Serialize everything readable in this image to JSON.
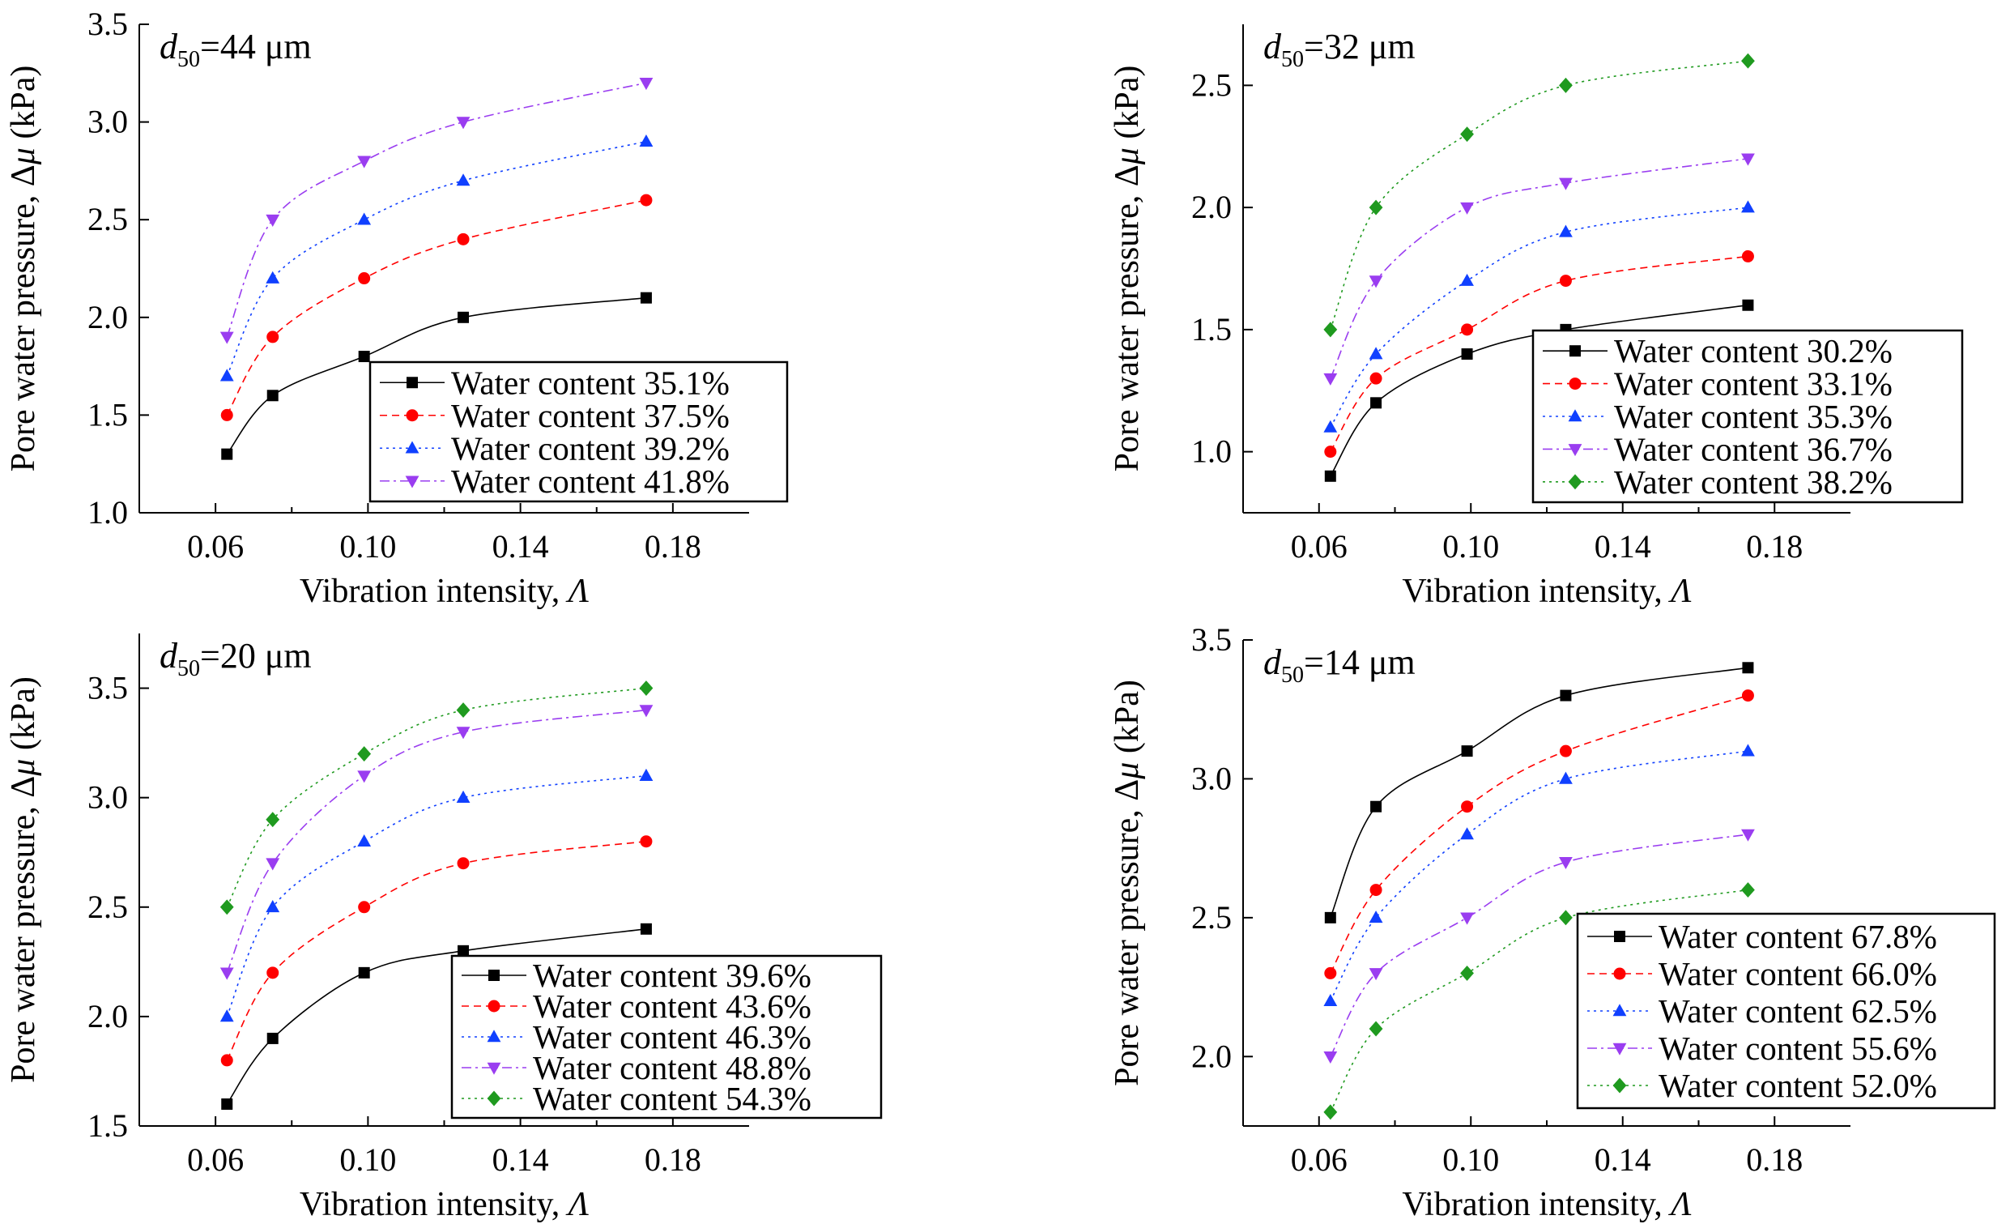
{
  "colors": {
    "black": "#000000",
    "red": "#ff0000",
    "blue": "#1040ff",
    "purple": "#9a3df0",
    "green": "#1f9a1f"
  },
  "chart_data": [
    {
      "type": "line",
      "panel_label_main": "d",
      "panel_label_sub": "50",
      "panel_label_rest": "=44 μm",
      "xlabel_main": "Vibration intensity, ",
      "xlabel_symbol": "Λ",
      "ylabel_main": "Pore water pressure, Δ",
      "ylabel_symbol": "μ",
      "ylabel_rest": " (kPa)",
      "xlim": [
        0.04,
        0.2
      ],
      "ylim": [
        1.0,
        3.5
      ],
      "xticks": [
        "0.06",
        "0.10",
        "0.14",
        "0.18"
      ],
      "yticks": [
        "1.0",
        "1.5",
        "2.0",
        "2.5",
        "3.0",
        "3.5"
      ],
      "x": [
        0.063,
        0.075,
        0.099,
        0.125,
        0.173
      ],
      "legend_position": "bottom-right",
      "series": [
        {
          "name": "Water content 35.1%",
          "values": [
            1.3,
            1.6,
            1.8,
            2.0,
            2.1
          ],
          "color": "#000000",
          "marker": "square",
          "line": "solid"
        },
        {
          "name": "Water content 37.5%",
          "values": [
            1.5,
            1.9,
            2.2,
            2.4,
            2.6
          ],
          "color": "#ff0000",
          "marker": "circle",
          "line": "dashed"
        },
        {
          "name": "Water content 39.2%",
          "values": [
            1.7,
            2.2,
            2.5,
            2.7,
            2.9
          ],
          "color": "#1040ff",
          "marker": "triangle-up",
          "line": "dotted"
        },
        {
          "name": "Water content 41.8%",
          "values": [
            1.9,
            2.5,
            2.8,
            3.0,
            3.2
          ],
          "color": "#9a3df0",
          "marker": "triangle-down",
          "line": "dashdot"
        }
      ]
    },
    {
      "type": "line",
      "panel_label_main": "d",
      "panel_label_sub": "50",
      "panel_label_rest": "=32 μm",
      "xlabel_main": "Vibration intensity, ",
      "xlabel_symbol": "Λ",
      "ylabel_main": "Pore water pressure, Δ",
      "ylabel_symbol": "μ",
      "ylabel_rest": " (kPa)",
      "xlim": [
        0.04,
        0.2
      ],
      "ylim": [
        0.75,
        2.75
      ],
      "xticks": [
        "0.06",
        "0.10",
        "0.14",
        "0.18"
      ],
      "yticks": [
        "1.0",
        "1.5",
        "2.0",
        "2.5"
      ],
      "x": [
        0.063,
        0.075,
        0.099,
        0.125,
        0.173
      ],
      "legend_position": "bottom-right",
      "series": [
        {
          "name": "Water content 30.2%",
          "values": [
            0.9,
            1.2,
            1.4,
            1.5,
            1.6
          ],
          "color": "#000000",
          "marker": "square",
          "line": "solid"
        },
        {
          "name": "Water content 33.1%",
          "values": [
            1.0,
            1.3,
            1.5,
            1.7,
            1.8
          ],
          "color": "#ff0000",
          "marker": "circle",
          "line": "dashed"
        },
        {
          "name": "Water content 35.3%",
          "values": [
            1.1,
            1.4,
            1.7,
            1.9,
            2.0
          ],
          "color": "#1040ff",
          "marker": "triangle-up",
          "line": "dotted"
        },
        {
          "name": "Water content 36.7%",
          "values": [
            1.3,
            1.7,
            2.0,
            2.1,
            2.2
          ],
          "color": "#9a3df0",
          "marker": "triangle-down",
          "line": "dashdot"
        },
        {
          "name": "Water content 38.2%",
          "values": [
            1.5,
            2.0,
            2.3,
            2.5,
            2.6
          ],
          "color": "#1f9a1f",
          "marker": "diamond",
          "line": "dotted"
        }
      ]
    },
    {
      "type": "line",
      "panel_label_main": "d",
      "panel_label_sub": "50",
      "panel_label_rest": "=20 μm",
      "xlabel_main": "Vibration intensity, ",
      "xlabel_symbol": "Λ",
      "ylabel_main": "Pore water pressure, Δ",
      "ylabel_symbol": "μ",
      "ylabel_rest": " (kPa)",
      "xlim": [
        0.04,
        0.2
      ],
      "ylim": [
        1.5,
        3.75
      ],
      "xticks": [
        "0.06",
        "0.10",
        "0.14",
        "0.18"
      ],
      "yticks": [
        "1.5",
        "2.0",
        "2.5",
        "3.0",
        "3.5"
      ],
      "x": [
        0.063,
        0.075,
        0.099,
        0.125,
        0.173
      ],
      "legend_position": "bottom-right",
      "series": [
        {
          "name": "Water content 39.6%",
          "values": [
            1.6,
            1.9,
            2.2,
            2.3,
            2.4
          ],
          "color": "#000000",
          "marker": "square",
          "line": "solid"
        },
        {
          "name": "Water content 43.6%",
          "values": [
            1.8,
            2.2,
            2.5,
            2.7,
            2.8
          ],
          "color": "#ff0000",
          "marker": "circle",
          "line": "dashed"
        },
        {
          "name": "Water content 46.3%",
          "values": [
            2.0,
            2.5,
            2.8,
            3.0,
            3.1
          ],
          "color": "#1040ff",
          "marker": "triangle-up",
          "line": "dotted"
        },
        {
          "name": "Water content 48.8%",
          "values": [
            2.2,
            2.7,
            3.1,
            3.3,
            3.4
          ],
          "color": "#9a3df0",
          "marker": "triangle-down",
          "line": "dashdot"
        },
        {
          "name": "Water content 54.3%",
          "values": [
            2.5,
            2.9,
            3.2,
            3.4,
            3.5
          ],
          "color": "#1f9a1f",
          "marker": "diamond",
          "line": "dotted"
        }
      ]
    },
    {
      "type": "line",
      "panel_label_main": "d",
      "panel_label_sub": "50",
      "panel_label_rest": "=14 μm",
      "xlabel_main": "Vibration intensity, ",
      "xlabel_symbol": "Λ",
      "ylabel_main": "Pore water pressure, Δ",
      "ylabel_symbol": "μ",
      "ylabel_rest": " (kPa)",
      "xlim": [
        0.04,
        0.2
      ],
      "ylim": [
        1.75,
        3.5
      ],
      "xticks": [
        "0.06",
        "0.10",
        "0.14",
        "0.18"
      ],
      "yticks": [
        "2.0",
        "2.5",
        "3.0",
        "3.5"
      ],
      "x": [
        0.063,
        0.075,
        0.099,
        0.125,
        0.173
      ],
      "legend_position": "bottom-right",
      "series": [
        {
          "name": "Water content 67.8%",
          "values": [
            2.5,
            2.9,
            3.1,
            3.3,
            3.4
          ],
          "color": "#000000",
          "marker": "square",
          "line": "solid"
        },
        {
          "name": "Water content 66.0%",
          "values": [
            2.3,
            2.6,
            2.9,
            3.1,
            3.3
          ],
          "color": "#ff0000",
          "marker": "circle",
          "line": "dashed"
        },
        {
          "name": "Water content 62.5%",
          "values": [
            2.2,
            2.5,
            2.8,
            3.0,
            3.1
          ],
          "color": "#1040ff",
          "marker": "triangle-up",
          "line": "dotted"
        },
        {
          "name": "Water content 55.6%",
          "values": [
            2.0,
            2.3,
            2.5,
            2.7,
            2.8
          ],
          "color": "#9a3df0",
          "marker": "triangle-down",
          "line": "dashdot"
        },
        {
          "name": "Water content 52.0%",
          "values": [
            1.8,
            2.1,
            2.3,
            2.5,
            2.6
          ],
          "color": "#1f9a1f",
          "marker": "diamond",
          "line": "dotted"
        }
      ]
    }
  ]
}
